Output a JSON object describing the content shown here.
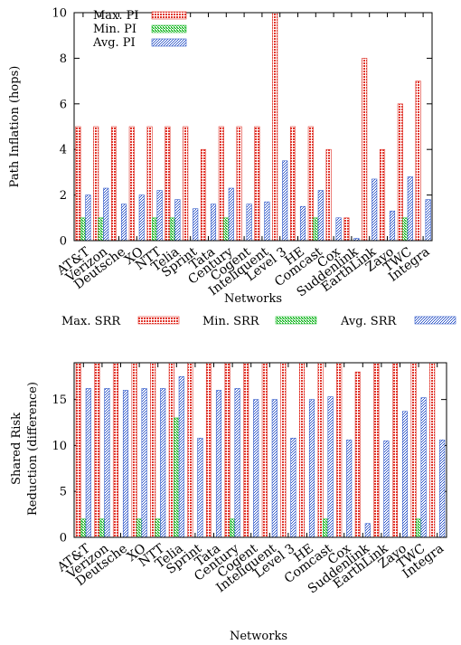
{
  "colors": {
    "max": "#e0352b",
    "min": "#2fbf3a",
    "avg": "#2d56c8"
  },
  "chart_data": [
    {
      "type": "bar",
      "xlabel": "Networks",
      "ylabel": "Path Inflation (hops)",
      "ylim": [
        0,
        10
      ],
      "yticks": [
        0,
        2,
        4,
        6,
        8,
        10
      ],
      "legend_position": "top-left",
      "categories": [
        "AT&T",
        "Verizon",
        "Deutsche",
        "XO",
        "NTT",
        "Telia",
        "Sprint",
        "Tata",
        "Century",
        "Cogent",
        "Inteliquent",
        "Level 3",
        "HE",
        "Comcast",
        "Cox",
        "Suddenlink",
        "EarthLink",
        "Zayo",
        "TWC",
        "Integra"
      ],
      "series": [
        {
          "name": "Max. PI",
          "key": "max",
          "values": [
            5,
            5,
            5,
            5,
            5,
            5,
            5,
            4,
            5,
            5,
            5,
            10,
            5,
            5,
            4,
            1,
            8,
            4,
            6,
            7
          ]
        },
        {
          "name": "Min. PI",
          "key": "min",
          "values": [
            1,
            1,
            0,
            0,
            1,
            1,
            0,
            0,
            1,
            0,
            0,
            0,
            0,
            1,
            0,
            0,
            0,
            0,
            1,
            0
          ]
        },
        {
          "name": "Avg. PI",
          "key": "avg",
          "values": [
            2,
            2.3,
            1.6,
            2,
            2.2,
            1.8,
            1.4,
            1.6,
            2.3,
            1.6,
            1.7,
            3.5,
            1.5,
            2.2,
            1,
            0.1,
            2.7,
            1.3,
            2.8,
            1.8
          ]
        }
      ]
    },
    {
      "type": "bar",
      "xlabel": "Networks",
      "ylabel_line1": "Shared Risk",
      "ylabel_line2": "Reduction (difference)",
      "ylim": [
        0,
        19
      ],
      "yticks": [
        0,
        5,
        10,
        15
      ],
      "legend_position": "top",
      "categories": [
        "AT&T",
        "Verizon",
        "Deutsche",
        "XO",
        "NTT",
        "Telia",
        "Sprint",
        "Tata",
        "Century",
        "Cogent",
        "Inteliquent",
        "Level 3",
        "HE",
        "Comcast",
        "Cox",
        "Suddenlink",
        "EarthLink",
        "Zayo",
        "TWC",
        "Integra"
      ],
      "series": [
        {
          "name": "Max. SRR",
          "key": "max",
          "values": [
            19,
            19,
            19,
            19,
            19,
            19,
            19,
            19,
            19,
            19,
            19,
            19,
            19,
            19,
            19,
            18,
            19,
            19,
            19,
            19
          ]
        },
        {
          "name": "Min. SRR",
          "key": "min",
          "values": [
            2,
            2,
            0,
            2,
            2,
            13,
            0,
            0,
            2,
            0,
            0,
            0,
            0,
            2,
            0,
            0,
            0,
            0,
            2,
            0
          ]
        },
        {
          "name": "Avg. SRR",
          "key": "avg",
          "values": [
            16.2,
            16.2,
            16,
            16.2,
            16.2,
            17.5,
            10.8,
            16,
            16.2,
            15,
            15,
            10.8,
            15,
            15.3,
            10.6,
            1.5,
            10.5,
            13.7,
            15.2,
            10.6
          ]
        }
      ]
    }
  ]
}
